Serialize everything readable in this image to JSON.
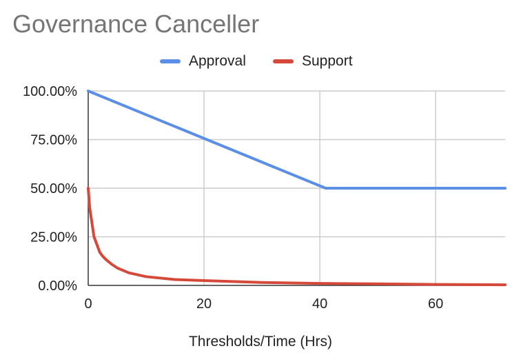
{
  "chart_data": {
    "type": "line",
    "title": "Governance Canceller",
    "xlabel": "Thresholds/Time (Hrs)",
    "ylabel": "",
    "xlim": [
      0,
      72
    ],
    "ylim": [
      0,
      100
    ],
    "x_ticks": [
      0,
      20,
      40,
      60
    ],
    "x_tick_labels": [
      "0",
      "20",
      "40",
      "60"
    ],
    "y_ticks": [
      0,
      25,
      50,
      75,
      100
    ],
    "y_tick_labels": [
      "0.00%",
      "25.00%",
      "50.00%",
      "75.00%",
      "100.00%"
    ],
    "grid": true,
    "legend_position": "top-center",
    "series": [
      {
        "name": "Approval",
        "color": "#5b8ee6",
        "points": [
          [
            0,
            100
          ],
          [
            41,
            50
          ],
          [
            72,
            50
          ]
        ]
      },
      {
        "name": "Support",
        "color": "#d5493a",
        "points": [
          [
            0,
            50
          ],
          [
            0.25,
            40
          ],
          [
            0.5,
            35
          ],
          [
            1,
            25
          ],
          [
            2,
            17
          ],
          [
            2.5,
            15
          ],
          [
            3,
            13.5
          ],
          [
            4,
            11
          ],
          [
            5,
            9
          ],
          [
            7,
            6.5
          ],
          [
            10,
            4.5
          ],
          [
            15,
            3
          ],
          [
            20,
            2.5
          ],
          [
            30,
            1.5
          ],
          [
            40,
            1
          ],
          [
            50,
            0.8
          ],
          [
            60,
            0.5
          ],
          [
            72,
            0.3
          ]
        ]
      }
    ]
  }
}
